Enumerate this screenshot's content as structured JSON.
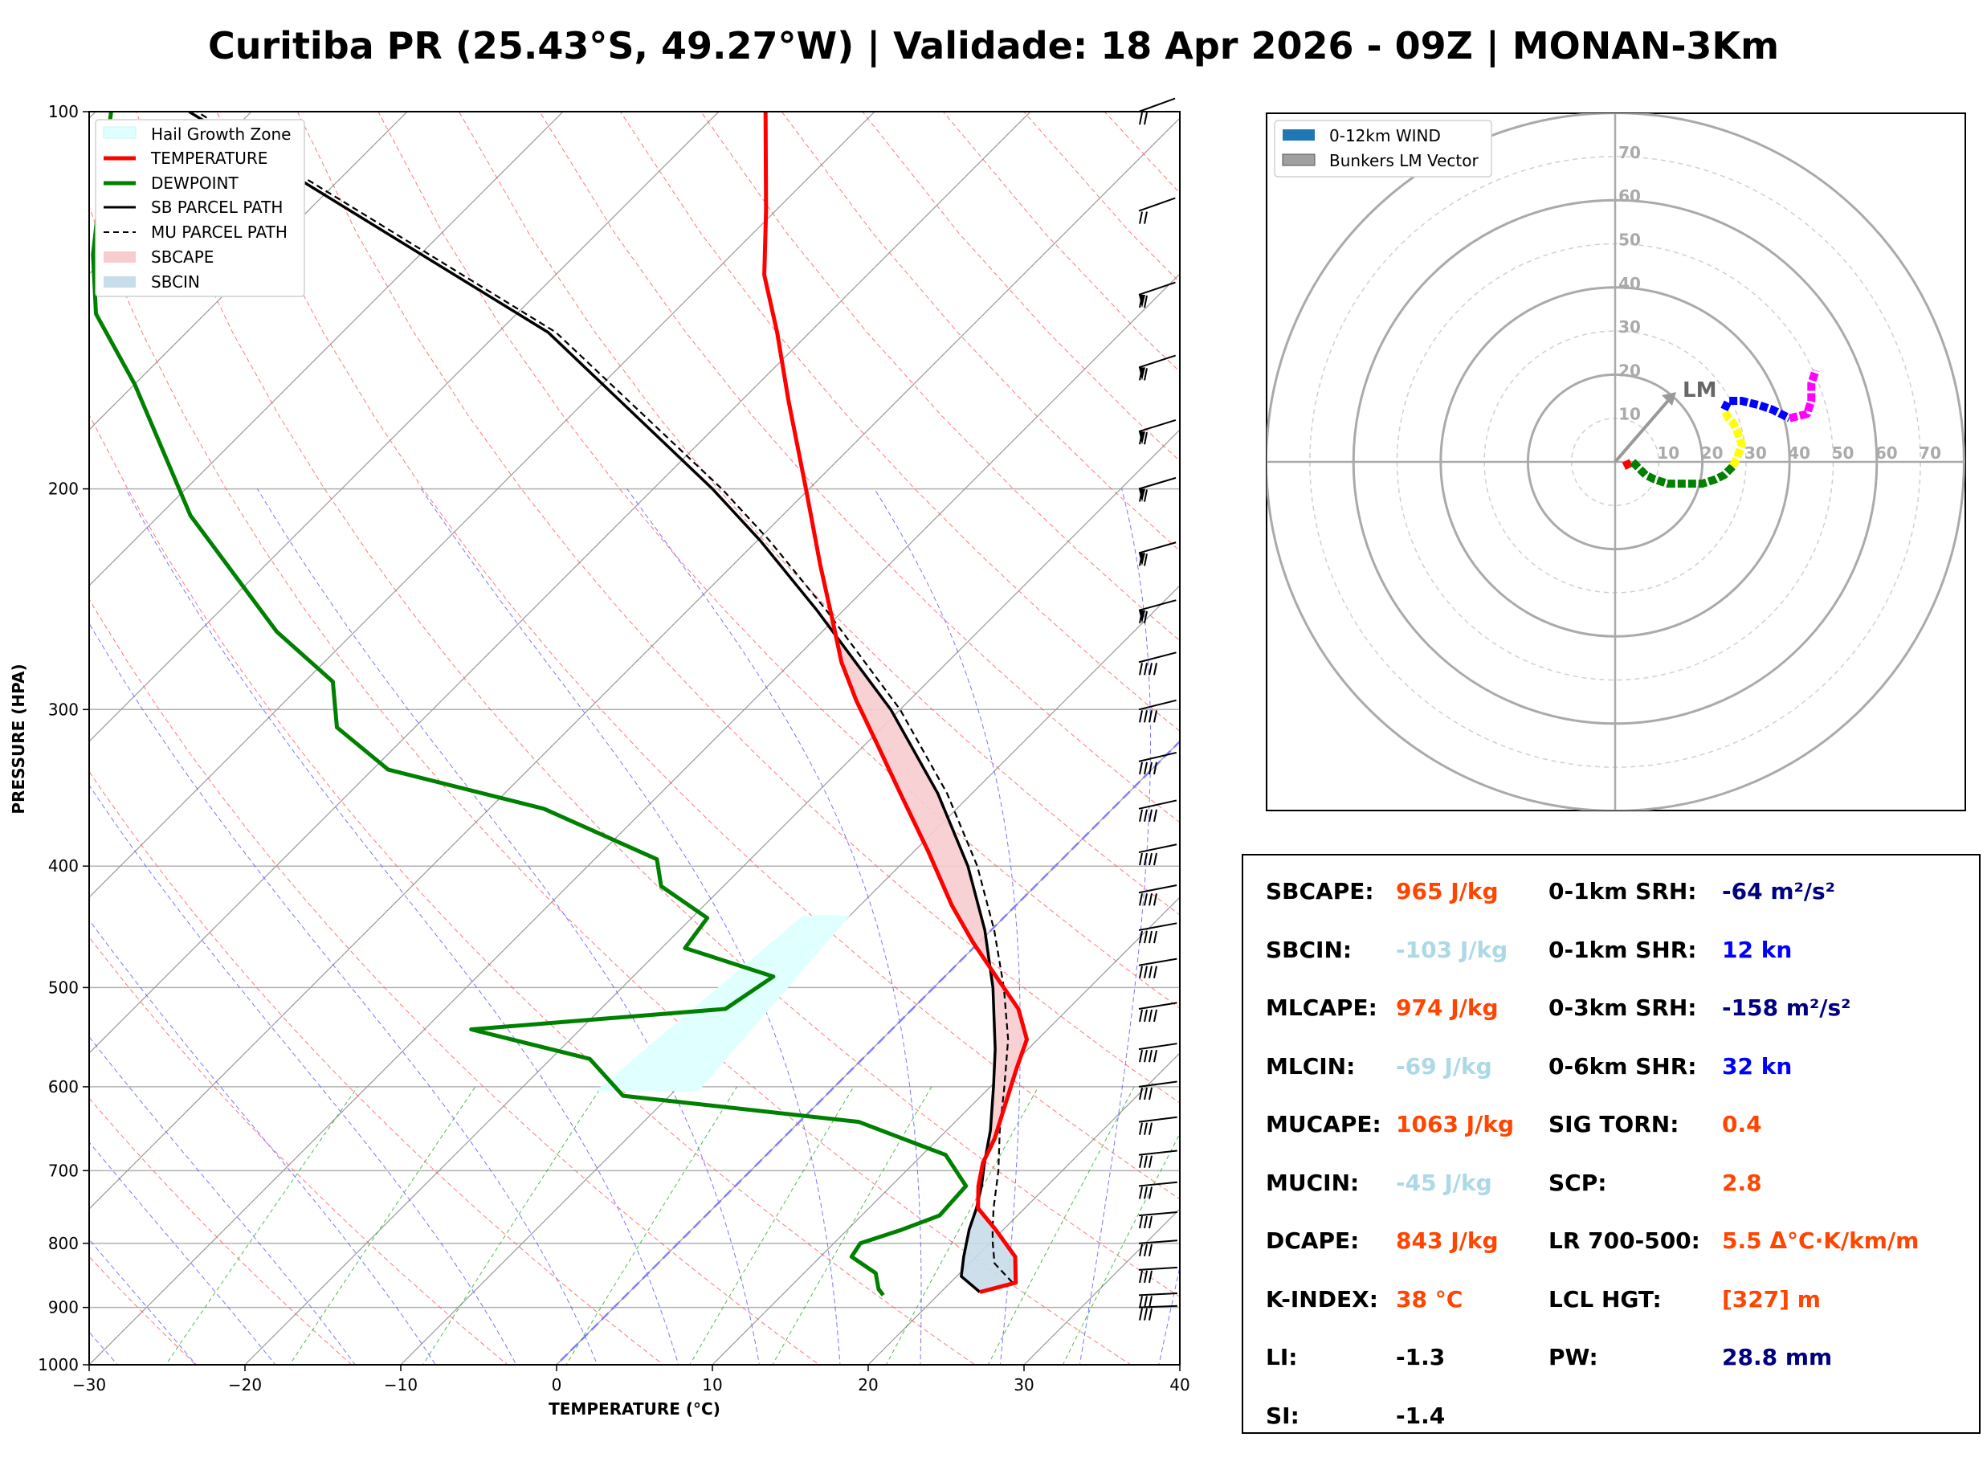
{
  "title": "Curitiba PR (25.43°S, 49.27°W) | Validade: 18 Apr 2026 - 09Z | MONAN-3Km",
  "chart_data": [
    {
      "type": "line",
      "subtype": "skew-t log-p",
      "xlabel": "TEMPERATURE (°C)",
      "ylabel": "PRESSURE (HPA)",
      "xlim": [
        -30,
        40
      ],
      "ylim": [
        1000,
        100
      ],
      "x_ticks": [
        "−30",
        "−20",
        "−10",
        "0",
        "10",
        "20",
        "30",
        "40"
      ],
      "y_ticks": [
        "100",
        "200",
        "300",
        "400",
        "500",
        "600",
        "700",
        "800",
        "900",
        "1000"
      ],
      "legend": [
        "Hail Growth Zone",
        "TEMPERATURE",
        "DEWPOINT",
        "SB PARCEL PATH",
        "MU PARCEL PATH",
        "SBCAPE",
        "SBCIN"
      ],
      "colors": {
        "temperature": "#ff0000",
        "dewpoint": "#008000",
        "parcel": "#000000",
        "sbcape": "#f7cccf",
        "sbcin": "#c9dcea",
        "hail": "#e0ffff"
      },
      "hail_growth_zone": {
        "p_top": 438,
        "p_bottom": 605
      },
      "temperature": {
        "p": [
          875,
          860,
          820,
          780,
          750,
          720,
          690,
          660,
          620,
          580,
          550,
          520,
          490,
          460,
          430,
          390,
          350,
          320,
          295,
          275,
          255,
          230,
          200,
          170,
          150,
          135,
          120,
          100
        ],
        "t": [
          22.5,
          24.2,
          22.5,
          19.5,
          17.0,
          15.6,
          14.4,
          13.6,
          12.1,
          10.5,
          9.3,
          6.8,
          3.3,
          -0.4,
          -4.1,
          -9.0,
          -14.6,
          -19.2,
          -23.4,
          -26.8,
          -30.0,
          -34.4,
          -40.2,
          -47.0,
          -52.1,
          -56.6,
          -60.6,
          -67.0
        ]
      },
      "dewpoint": {
        "p": [
          880,
          870,
          845,
          820,
          800,
          780,
          760,
          720,
          680,
          640,
          610,
          570,
          540,
          520,
          490,
          465,
          440,
          415,
          395,
          360,
          335,
          310,
          285,
          260,
          210,
          165,
          145,
          130,
          118,
          100
        ],
        "t": [
          16.5,
          15.8,
          14.6,
          12.0,
          11.7,
          13.5,
          15.0,
          14.8,
          11.5,
          3.8,
          -13.0,
          -17.5,
          -27.0,
          -12.0,
          -11.0,
          -18.5,
          -19.0,
          -24.0,
          -26.0,
          -36.5,
          -49.0,
          -55.0,
          -58.2,
          -65.0,
          -78.0,
          -90.0,
          -97.0,
          -101.0,
          -104.0,
          -109.0
        ]
      },
      "sb_parcel": {
        "p": [
          875,
          850,
          820,
          780,
          750,
          720,
          690,
          650,
          600,
          560,
          500,
          450,
          400,
          350,
          300,
          250,
          220,
          200,
          150,
          100
        ],
        "t": [
          22.5,
          20.3,
          19.2,
          17.8,
          16.9,
          15.8,
          14.5,
          12.8,
          10.2,
          7.9,
          3.8,
          -0.4,
          -5.6,
          -12.2,
          -20.6,
          -31.7,
          -39.8,
          -46.2,
          -66.8,
          -104.0
        ]
      },
      "mu_parcel": {
        "p": [
          860,
          830,
          800,
          780,
          750,
          700,
          650,
          600,
          550,
          500,
          450,
          400,
          350,
          300,
          250,
          220,
          200,
          150,
          100
        ],
        "t": [
          24.0,
          21.6,
          20.2,
          19.3,
          18.0,
          15.9,
          13.4,
          10.9,
          8.1,
          4.5,
          0.2,
          -5.0,
          -11.6,
          -20.0,
          -31.1,
          -39.2,
          -45.6,
          -66.3,
          -103.5
        ]
      },
      "wind_barbs": [
        "1000-100 hPa"
      ]
    },
    {
      "type": "line",
      "subtype": "hodograph",
      "legend": [
        "0-12km WIND",
        "Bunkers LM Vector"
      ],
      "rings": [
        10,
        20,
        30,
        40,
        50,
        60,
        70
      ],
      "ring_labels": [
        "10",
        "20",
        "30",
        "40",
        "50",
        "60",
        "70"
      ],
      "storm_motion_label": "LM",
      "storm_motion": {
        "u": 14,
        "v": 16
      },
      "segments": [
        {
          "color": "#ff0000",
          "u": [
            2,
            4
          ],
          "v": [
            -1,
            0
          ]
        },
        {
          "color": "#008000",
          "u": [
            4,
            5,
            6,
            7,
            9,
            12,
            17,
            20,
            23,
            25,
            27
          ],
          "v": [
            0,
            -1,
            -2,
            -3,
            -4,
            -5,
            -5,
            -5,
            -4,
            -3,
            -1
          ]
        },
        {
          "color": "#ffff00",
          "u": [
            27,
            28,
            29,
            28,
            27,
            26,
            25
          ],
          "v": [
            -1,
            1,
            4,
            7,
            9,
            10,
            12
          ]
        },
        {
          "color": "#0000ff",
          "u": [
            25,
            26,
            29,
            33,
            36,
            40
          ],
          "v": [
            12,
            14,
            14,
            13,
            12,
            10
          ]
        },
        {
          "color": "#ff00ff",
          "u": [
            40,
            44,
            45,
            45,
            46
          ],
          "v": [
            10,
            11,
            14,
            18,
            21
          ]
        }
      ]
    }
  ],
  "params": [
    {
      "label": "SBCAPE:",
      "value": "965 J/kg",
      "color": "#ff4500"
    },
    {
      "label": "SBCIN:",
      "value": "-103 J/kg",
      "color": "#add8e6"
    },
    {
      "label": "MLCAPE:",
      "value": "974 J/kg",
      "color": "#ff4500"
    },
    {
      "label": "MLCIN:",
      "value": "-69 J/kg",
      "color": "#add8e6"
    },
    {
      "label": "MUCAPE:",
      "value": "1063 J/kg",
      "color": "#ff4500"
    },
    {
      "label": "MUCIN:",
      "value": "-45 J/kg",
      "color": "#add8e6"
    },
    {
      "label": "DCAPE:",
      "value": "843 J/kg",
      "color": "#ff4500"
    },
    {
      "label": "K-INDEX:",
      "value": "38 °C",
      "color": "#ff4500"
    },
    {
      "label": "LI:",
      "value": "-1.3",
      "color": "#000000"
    },
    {
      "label": "SI:",
      "value": "-1.4",
      "color": "#000000"
    },
    {
      "label": "0-1km SRH:",
      "value": "-64 m²/s²",
      "color": "#000080"
    },
    {
      "label": "0-1km SHR:",
      "value": "12 kn",
      "color": "#0000ff"
    },
    {
      "label": "0-3km SRH:",
      "value": "-158 m²/s²",
      "color": "#000080"
    },
    {
      "label": "0-6km SHR:",
      "value": "32 kn",
      "color": "#0000ff"
    },
    {
      "label": "SIG TORN:",
      "value": "0.4",
      "color": "#ff4500"
    },
    {
      "label": "SCP:",
      "value": "2.8",
      "color": "#ff4500"
    },
    {
      "label": "LR 700-500:",
      "value": "5.5 Δ°C·K/km/m",
      "color": "#ff4500"
    },
    {
      "label": "LCL HGT:",
      "value": "[327] m",
      "color": "#ff4500"
    },
    {
      "label": "PW:",
      "value": "28.8 mm",
      "color": "#000080"
    }
  ]
}
